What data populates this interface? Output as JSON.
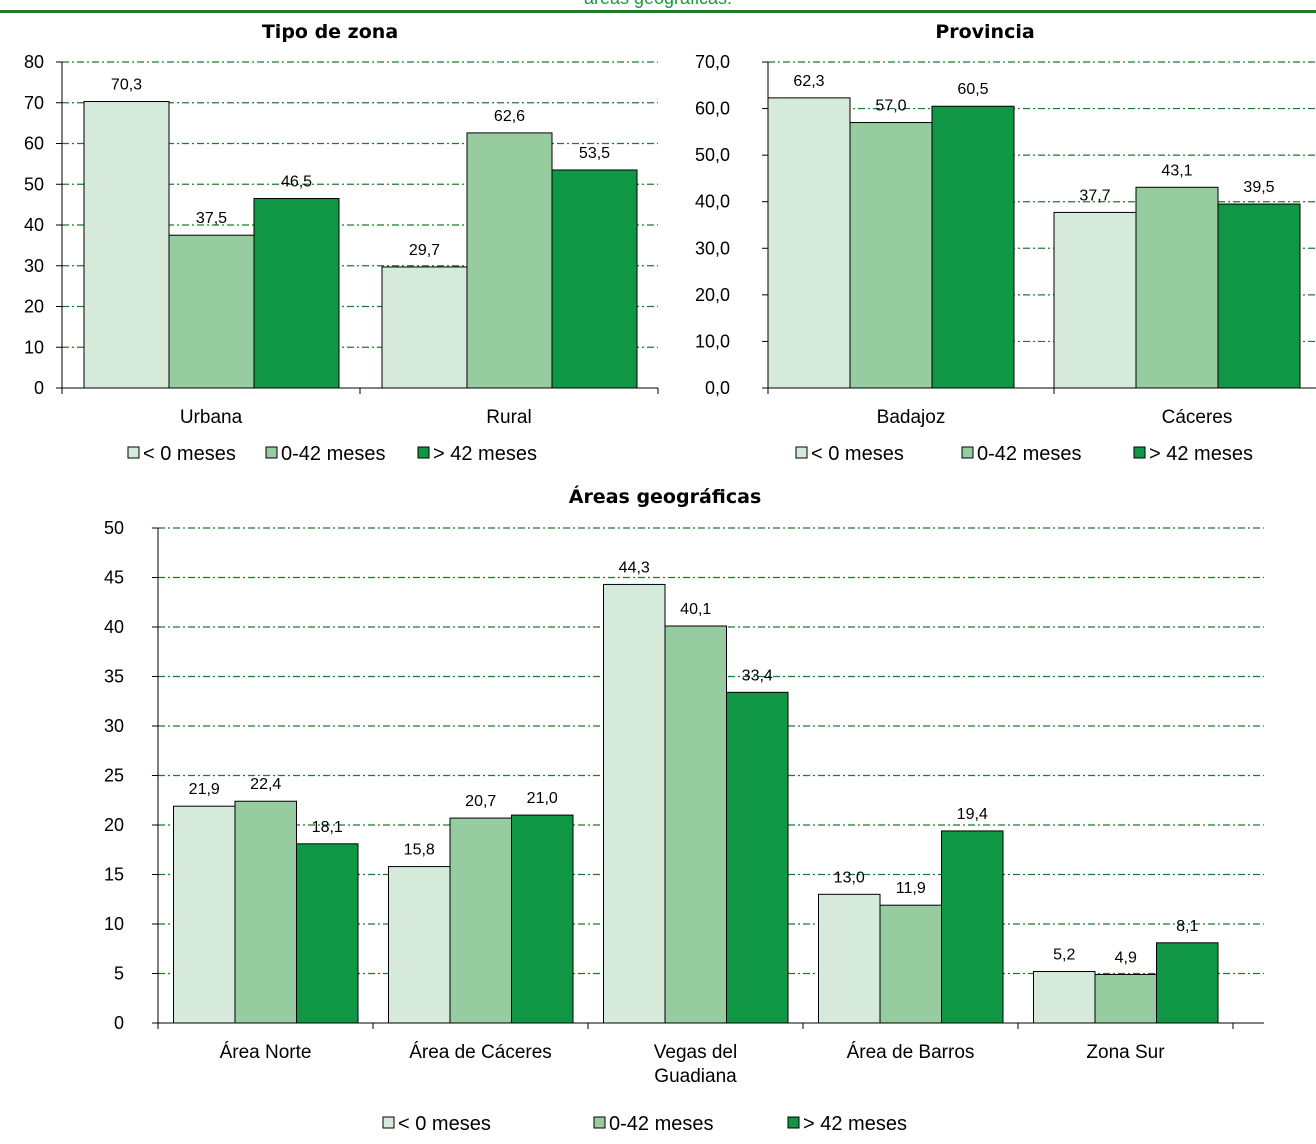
{
  "header": {
    "caption": "áreas geográficas."
  },
  "colors": {
    "series": [
      "#d5eadb",
      "#96cc9f",
      "#0f9745"
    ],
    "gridline": "#1e7a2e",
    "rule": "#1e7a2e"
  },
  "chart_data": [
    {
      "type": "bar",
      "title": "Tipo de zona",
      "categories": [
        "Urbana",
        "Rural"
      ],
      "series": [
        {
          "name": "< 0 meses",
          "values": [
            70.3,
            29.7
          ]
        },
        {
          "name": "0-42 meses",
          "values": [
            37.5,
            62.6
          ]
        },
        {
          "name": "> 42 meses",
          "values": [
            46.5,
            53.5
          ]
        }
      ],
      "ylim": [
        0,
        80
      ],
      "yticks": [
        "0",
        "10",
        "20",
        "30",
        "40",
        "50",
        "60",
        "70",
        "80"
      ],
      "value_labels": [
        [
          "70,3",
          "29,7"
        ],
        [
          "37,5",
          "62,6"
        ],
        [
          "46,5",
          "53,5"
        ]
      ],
      "grid": true,
      "legend": "bottom"
    },
    {
      "type": "bar",
      "title": "Provincia",
      "categories": [
        "Badajoz",
        "Cáceres"
      ],
      "series": [
        {
          "name": "< 0 meses",
          "values": [
            62.3,
            37.7
          ]
        },
        {
          "name": "0-42 meses",
          "values": [
            57.0,
            43.1
          ]
        },
        {
          "name": "> 42 meses",
          "values": [
            60.5,
            39.5
          ]
        }
      ],
      "ylim": [
        0,
        70
      ],
      "yticks": [
        "0,0",
        "10,0",
        "20,0",
        "30,0",
        "40,0",
        "50,0",
        "60,0",
        "70,0"
      ],
      "value_labels": [
        [
          "62,3",
          "37,7"
        ],
        [
          "57,0",
          "43,1"
        ],
        [
          "60,5",
          "39,5"
        ]
      ],
      "grid": true,
      "legend": "bottom"
    },
    {
      "type": "bar",
      "title": "Áreas geográficas",
      "categories": [
        "Área Norte",
        "Área de Cáceres",
        "Vegas del\nGuadiana",
        "Área de Barros",
        "Zona Sur"
      ],
      "series": [
        {
          "name": "< 0 meses",
          "values": [
            21.9,
            15.8,
            44.3,
            13.0,
            5.2
          ]
        },
        {
          "name": "0-42 meses",
          "values": [
            22.4,
            20.7,
            40.1,
            11.9,
            4.9
          ]
        },
        {
          "name": "> 42 meses",
          "values": [
            18.1,
            21.0,
            33.4,
            19.4,
            8.1
          ]
        }
      ],
      "ylim": [
        0,
        50
      ],
      "yticks": [
        "0",
        "5",
        "10",
        "15",
        "20",
        "25",
        "30",
        "35",
        "40",
        "45",
        "50"
      ],
      "value_labels": [
        [
          "21,9",
          "15,8",
          "44,3",
          "13,0",
          "5,2"
        ],
        [
          "22,4",
          "20,7",
          "40,1",
          "11,9",
          "4,9"
        ],
        [
          "18,1",
          "21,0",
          "33,4",
          "19,4",
          "8,1"
        ]
      ],
      "grid": true,
      "legend": "bottom"
    }
  ]
}
